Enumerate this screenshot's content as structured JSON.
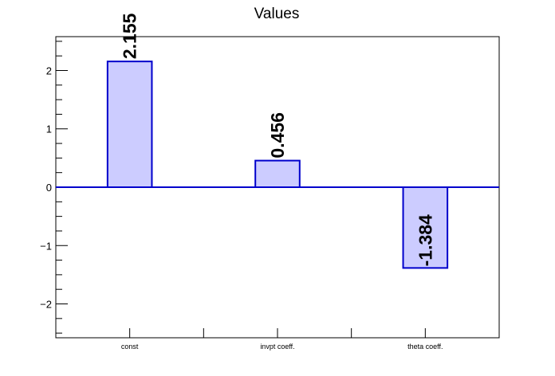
{
  "chart_data": {
    "type": "bar",
    "title": "Values",
    "categories": [
      "const",
      "invpt coeff.",
      "theta coeff."
    ],
    "values": [
      2.155,
      0.456,
      -1.384
    ],
    "data_labels": [
      "2.155",
      "0.456",
      "-1.384"
    ],
    "ylim": [
      -2.58,
      2.58
    ],
    "yticks": [
      -2,
      -1,
      0,
      1,
      2
    ],
    "ytick_labels": [
      "−2",
      "−1",
      "0",
      "1",
      "2"
    ],
    "xlabel": "",
    "ylabel": "",
    "grid": false,
    "bar_fill_color": "#ccccff",
    "bar_edge_color": "#0000cc",
    "zero_line_color": "#0000cc"
  }
}
